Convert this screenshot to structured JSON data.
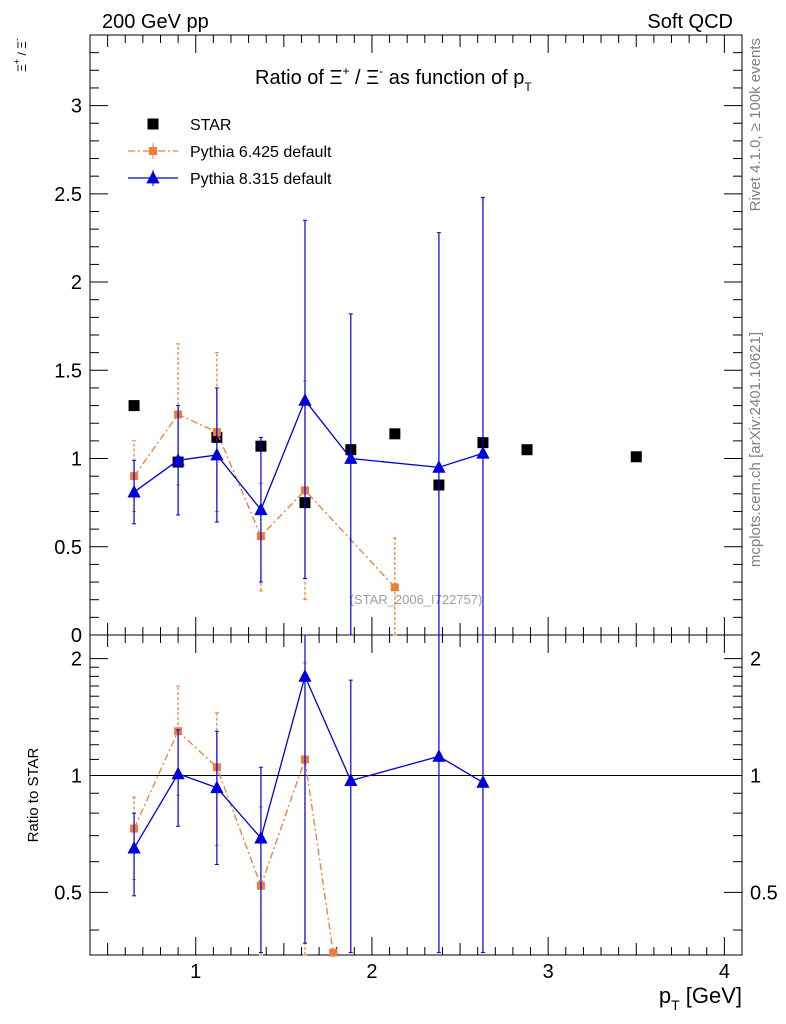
{
  "header": {
    "left_label": "200 GeV pp",
    "right_label": "Soft QCD"
  },
  "side": {
    "rivet": "Rivet 4.1.0, ≥ 100k events",
    "mcplots": "mcplots.cern.ch [arXiv:2401.10621]"
  },
  "chart_data": [
    {
      "type": "scatter",
      "title": "Ratio of Ξ⁺ / Ξ⁻ as function of p_T",
      "title_parts": {
        "lead": "Ratio of ",
        "sym1": "Ξ",
        "sup1": "+",
        "mid": " / ",
        "sym2": "Ξ",
        "sup2": "-",
        "tail": " as function of p",
        "sub": "T"
      },
      "ylabel": "Ξ⁺ / Ξ⁻",
      "ylabel_parts": {
        "sym1": "Ξ",
        "sup1": "+",
        "slash": " / ",
        "sym2": "Ξ",
        "sup2": "-"
      },
      "xlim": [
        0.4,
        4.1
      ],
      "ylim": [
        0,
        3.4
      ],
      "yticks": [
        0,
        0.5,
        1,
        1.5,
        2,
        2.5,
        3
      ],
      "ytick_labels": [
        "0",
        "0.5",
        "1",
        "1.5",
        "2",
        "2.5",
        "3"
      ],
      "watermark": "(STAR_2006_I722757)",
      "legend": [
        {
          "name": "STAR",
          "marker": "square",
          "color": "#000000"
        },
        {
          "name": "Pythia 6.425 default",
          "marker": "square",
          "color": "#ee7d3b",
          "dash": "dashdot"
        },
        {
          "name": "Pythia 8.315 default",
          "marker": "triangle",
          "color": "#0000dd"
        }
      ],
      "series": [
        {
          "name": "STAR",
          "x": [
            0.65,
            0.9,
            1.12,
            1.37,
            1.62,
            1.88,
            2.13,
            2.38,
            2.63,
            2.88,
            3.5
          ],
          "y": [
            1.3,
            0.98,
            1.12,
            1.07,
            0.75,
            1.05,
            1.14,
            0.85,
            1.09,
            1.05,
            1.01
          ]
        },
        {
          "name": "Pythia 6.425 default",
          "x": [
            0.65,
            0.9,
            1.12,
            1.37,
            1.62,
            2.13
          ],
          "y": [
            0.9,
            1.25,
            1.15,
            0.56,
            0.82,
            0.27
          ],
          "ylo": [
            0.7,
            0.85,
            0.7,
            0.25,
            0.2,
            0
          ],
          "yhi": [
            1.1,
            1.65,
            1.6,
            0.86,
            1.44,
            0.55
          ]
        },
        {
          "name": "Pythia 8.315 default",
          "x": [
            0.65,
            0.9,
            1.12,
            1.37,
            1.62,
            1.88,
            2.38,
            2.63
          ],
          "y": [
            0.81,
            0.99,
            1.02,
            0.71,
            1.33,
            1.0,
            0.95,
            1.03
          ],
          "ylo": [
            0.63,
            0.68,
            0.64,
            0.3,
            0.32,
            0,
            0,
            0
          ],
          "yhi": [
            0.99,
            1.3,
            1.4,
            1.12,
            2.35,
            1.82,
            2.28,
            2.48
          ]
        }
      ]
    },
    {
      "type": "scatter",
      "title": "",
      "ylabel": "Ratio to STAR",
      "xlabel": "p_T [GeV]",
      "xlabel_parts": {
        "lead": "p",
        "sub": "T",
        "tail": " [GeV]"
      },
      "xlim": [
        0.4,
        4.1
      ],
      "ylim": [
        0.345,
        2.3
      ],
      "yscale": "log",
      "xticks": [
        1,
        2,
        3,
        4
      ],
      "xtick_labels": [
        "1",
        "2",
        "3",
        "4"
      ],
      "yticks": [
        0.5,
        1,
        2
      ],
      "ytick_labels": [
        "0.5",
        "1",
        "2"
      ],
      "reference_line": 1,
      "series": [
        {
          "name": "Pythia 6.425 default",
          "x": [
            0.65,
            0.9,
            1.12,
            1.37,
            1.62,
            1.78
          ],
          "y": [
            0.73,
            1.3,
            1.05,
            0.52,
            1.1,
            0.35
          ],
          "ylo": [
            0.54,
            0.89,
            0.66,
            0.23,
            0.3,
            0.35
          ],
          "yhi": [
            0.88,
            1.7,
            1.45,
            0.83,
            1.95,
            0.35
          ]
        },
        {
          "name": "Pythia 8.315 default",
          "x": [
            0.65,
            0.9,
            1.12,
            1.37,
            1.62,
            1.88,
            2.38,
            2.63
          ],
          "y": [
            0.65,
            1.01,
            0.93,
            0.69,
            1.8,
            0.97,
            1.12,
            0.96
          ],
          "ylo": [
            0.49,
            0.74,
            0.59,
            0.35,
            0.37,
            0.35,
            0.35,
            0.35
          ],
          "yhi": [
            0.8,
            1.31,
            1.3,
            1.05,
            2.3,
            1.76,
            2.3,
            2.3
          ]
        }
      ]
    }
  ]
}
